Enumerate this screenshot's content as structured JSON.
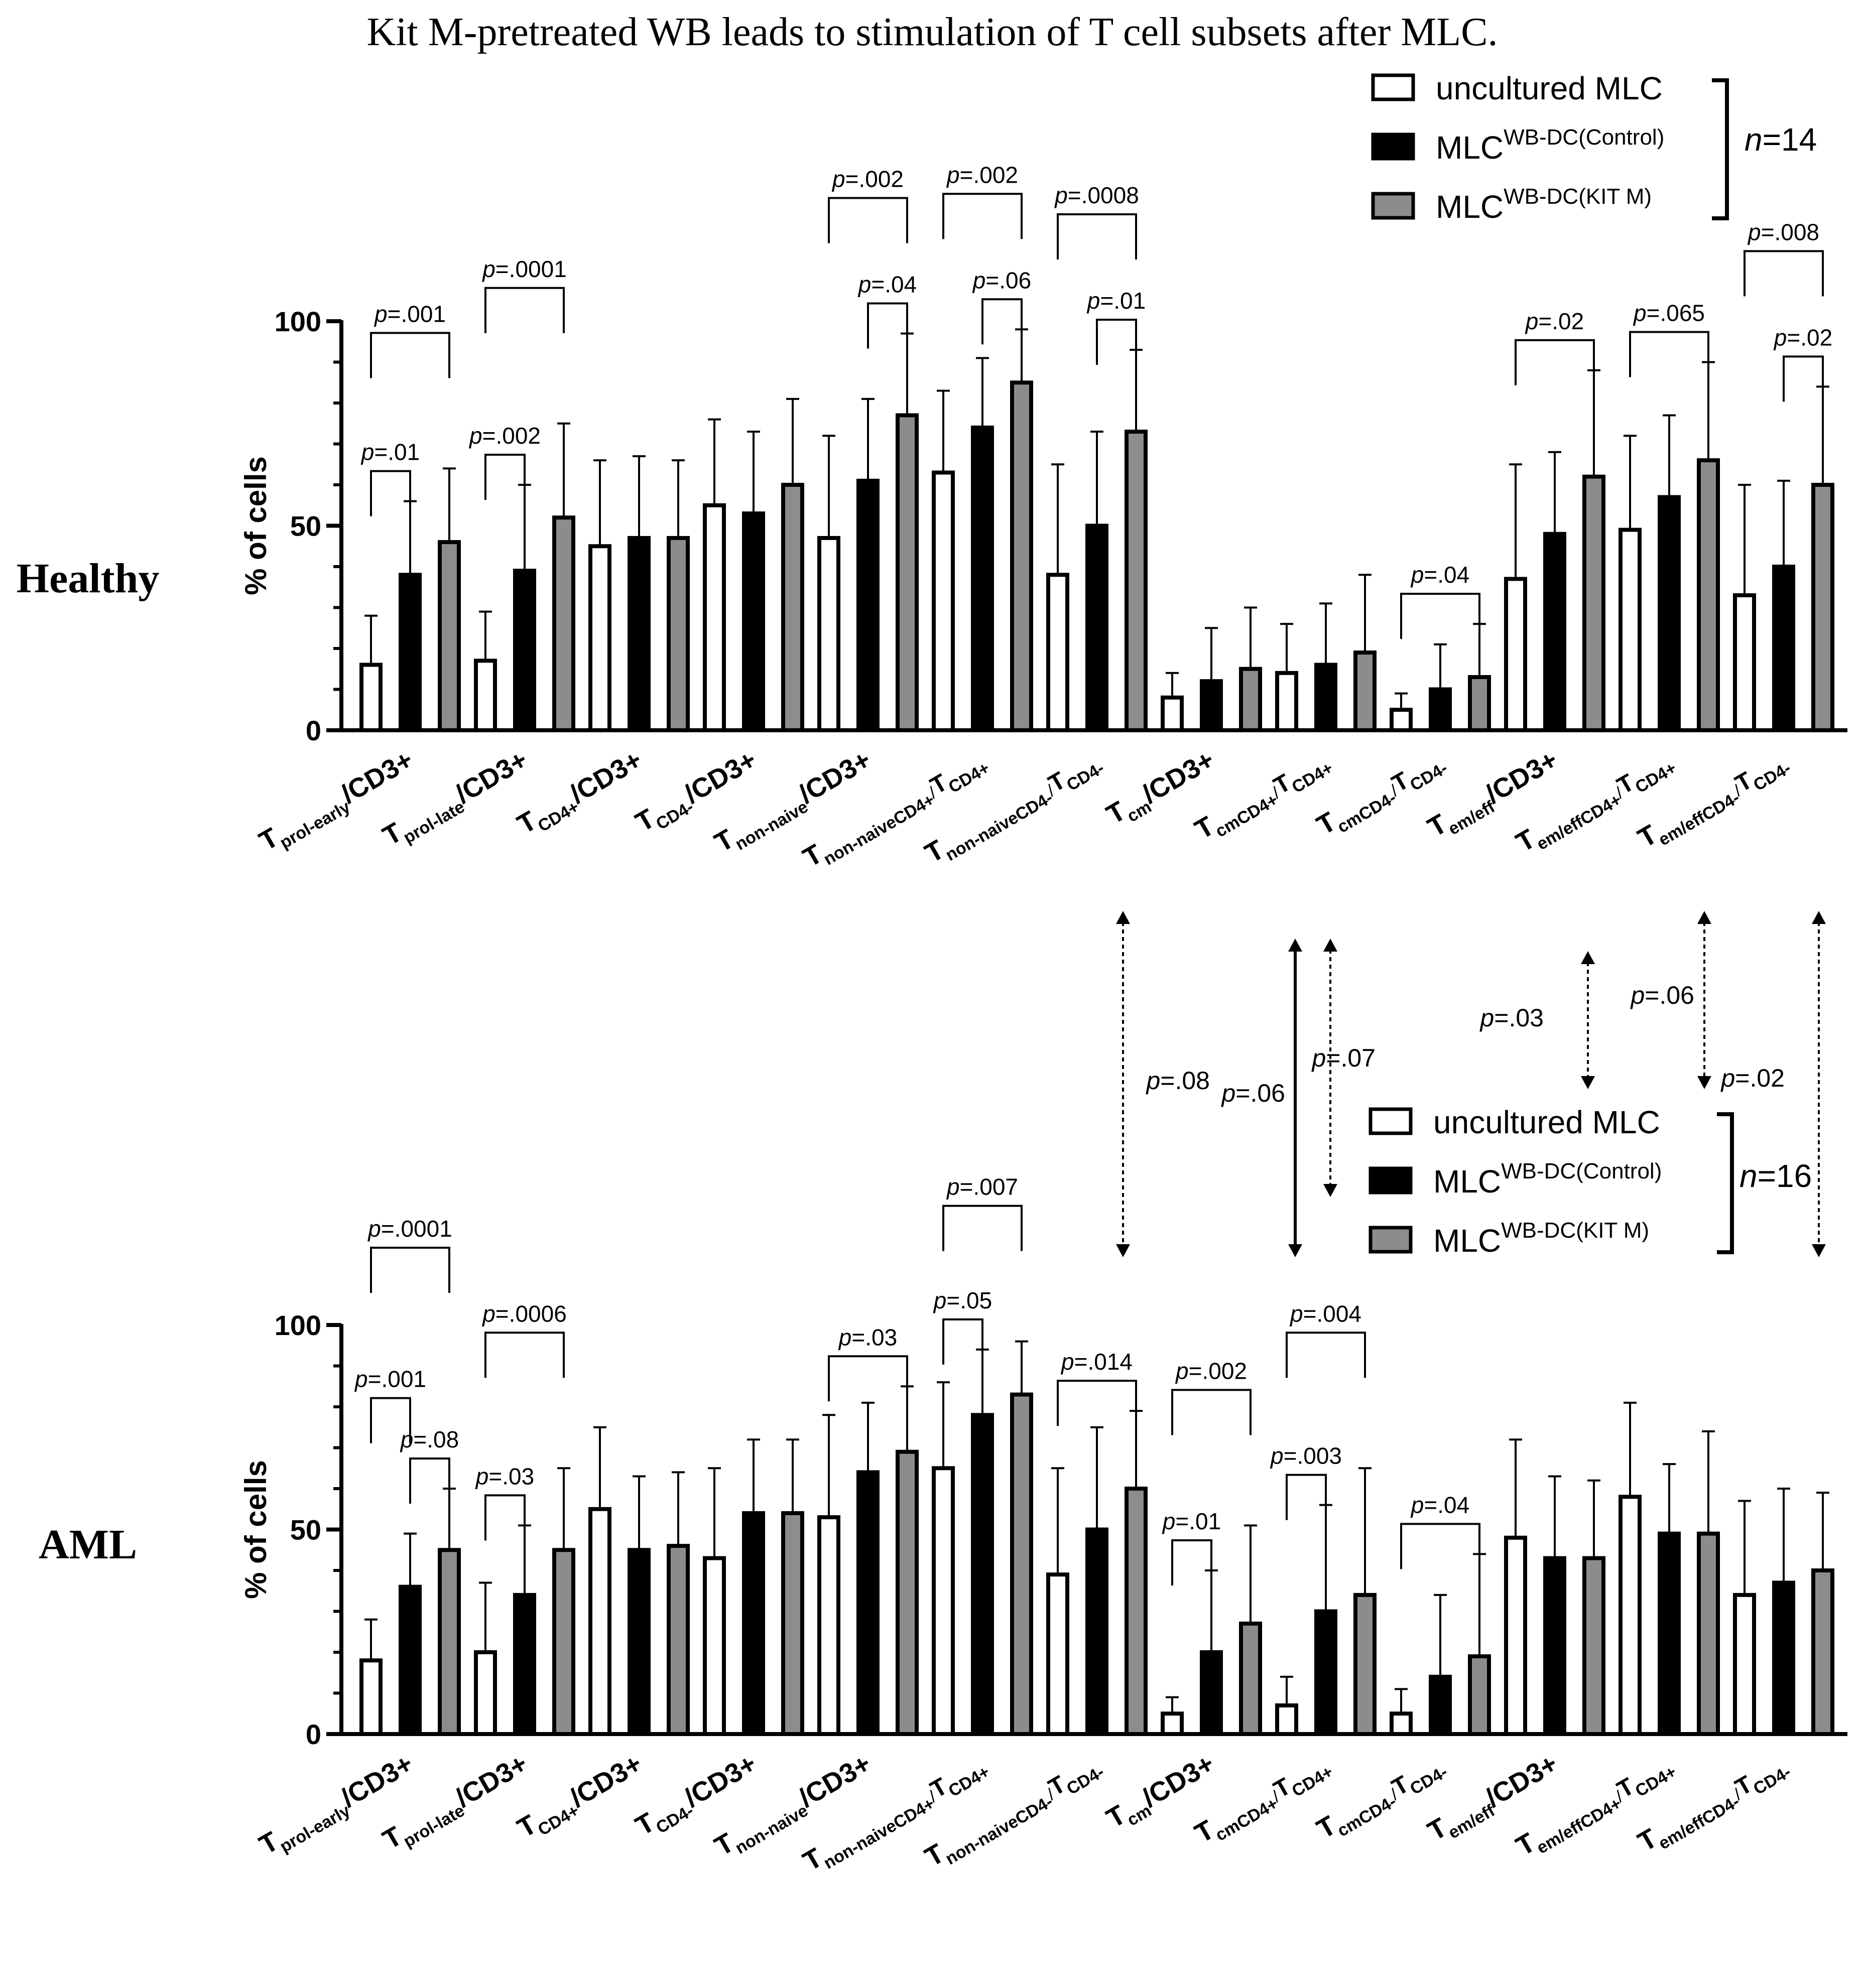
{
  "title": "Kit M-pretreated WB leads to stimulation of T cell subsets after MLC.",
  "colors": {
    "uncultured": "#ffffff",
    "control": "#000000",
    "kitm": "#8c8c8c",
    "axis": "#000000"
  },
  "chart_data": [
    {
      "type": "bar",
      "panel_label": "Healthy",
      "ylabel": "% of cells",
      "ylim": [
        0,
        100
      ],
      "yticks": [
        "0",
        "50",
        "100"
      ],
      "categories": [
        {
          "base": "T",
          "sub": "prol-early",
          "tail": "/CD3+"
        },
        {
          "base": "T",
          "sub": "prol-late",
          "tail": "/CD3+"
        },
        {
          "base": "T",
          "sub": "CD4+",
          "tail": "/CD3+"
        },
        {
          "base": "T",
          "sub": "CD4-",
          "tail": "/CD3+"
        },
        {
          "base": "T",
          "sub": "non-naive",
          "tail": "/CD3+"
        },
        {
          "base": "T",
          "sub": "non-naiveCD4+",
          "tail": "/T",
          "sub2": "CD4+"
        },
        {
          "base": "T",
          "sub": "non-naiveCD4-",
          "tail": "/T",
          "sub2": "CD4-"
        },
        {
          "base": "T",
          "sub": "cm",
          "tail": "/CD3+"
        },
        {
          "base": "T",
          "sub": "cmCD4+",
          "tail": "/T",
          "sub2": "CD4+"
        },
        {
          "base": "T",
          "sub": "cmCD4-",
          "tail": "/T",
          "sub2": "CD4-"
        },
        {
          "base": "T",
          "sub": "em/eff",
          "tail": "/CD3+"
        },
        {
          "base": "T",
          "sub": "em/effCD4+",
          "tail": "/T",
          "sub2": "CD4+"
        },
        {
          "base": "T",
          "sub": "em/effCD4-",
          "tail": "/T",
          "sub2": "CD4-"
        }
      ],
      "series": [
        {
          "name": "uncultured MLC",
          "color": "#ffffff",
          "values": [
            16,
            17,
            45,
            55,
            47,
            63,
            38,
            8,
            14,
            5,
            37,
            49,
            33
          ],
          "errors": [
            12,
            12,
            21,
            21,
            25,
            20,
            27,
            6,
            12,
            4,
            28,
            23,
            27
          ]
        },
        {
          "name": "MLC^WB-DC(Control)",
          "color": "#000000",
          "values": [
            38,
            39,
            47,
            53,
            61,
            74,
            50,
            12,
            16,
            10,
            48,
            57,
            40
          ],
          "errors": [
            18,
            21,
            20,
            20,
            20,
            17,
            23,
            13,
            15,
            11,
            20,
            20,
            21
          ]
        },
        {
          "name": "MLC^WB-DC(KIT M)",
          "color": "#8c8c8c",
          "values": [
            46,
            52,
            47,
            60,
            77,
            85,
            73,
            15,
            19,
            13,
            62,
            66,
            60
          ],
          "errors": [
            18,
            23,
            19,
            21,
            20,
            13,
            20,
            15,
            19,
            13,
            26,
            24,
            24
          ]
        }
      ],
      "legend": {
        "entries": [
          "uncultured MLC",
          "MLC",
          "MLC"
        ],
        "sup": [
          "",
          "WB-DC(Control)",
          "WB-DC(KIT M)"
        ],
        "n_label": "n",
        "n_value": "=14",
        "position": "top-right"
      },
      "significance": [
        {
          "group": 0,
          "from": 0,
          "to": 1,
          "level": 0,
          "p": "p",
          "text": "=.01"
        },
        {
          "group": 0,
          "from": 0,
          "to": 2,
          "level": 1,
          "p": "p",
          "text": "=.001"
        },
        {
          "group": 1,
          "from": 0,
          "to": 1,
          "level": 0,
          "p": "p",
          "text": "=.002"
        },
        {
          "group": 1,
          "from": 0,
          "to": 2,
          "level": 1,
          "p": "p",
          "text": "=.0001"
        },
        {
          "group": 4,
          "from": 1,
          "to": 2,
          "level": 0,
          "p": "p",
          "text": "=.04"
        },
        {
          "group": 4,
          "from": 0,
          "to": 2,
          "level": 1,
          "p": "p",
          "text": "=.002"
        },
        {
          "group": 5,
          "from": 1,
          "to": 2,
          "level": 0,
          "p": "p",
          "text": "=.06"
        },
        {
          "group": 5,
          "from": 0,
          "to": 2,
          "level": 1,
          "p": "p",
          "text": "=.002"
        },
        {
          "group": 6,
          "from": 1,
          "to": 2,
          "level": 0,
          "p": "p",
          "text": "=.01"
        },
        {
          "group": 6,
          "from": 0,
          "to": 2,
          "level": 1,
          "p": "p",
          "text": "=.0008"
        },
        {
          "group": 9,
          "from": 0,
          "to": 2,
          "level": 0,
          "p": "p",
          "text": "=.04"
        },
        {
          "group": 10,
          "from": 0,
          "to": 2,
          "level": 0,
          "p": "p",
          "text": "=.02"
        },
        {
          "group": 11,
          "from": 0,
          "to": 2,
          "level": 0,
          "p": "p",
          "text": "=.065"
        },
        {
          "group": 12,
          "from": 1,
          "to": 2,
          "level": 0,
          "p": "p",
          "text": "=.02"
        },
        {
          "group": 12,
          "from": 0,
          "to": 2,
          "level": 1,
          "p": "p",
          "text": "=.008"
        }
      ]
    },
    {
      "type": "bar",
      "panel_label": "AML",
      "ylabel": "% of cells",
      "ylim": [
        0,
        100
      ],
      "yticks": [
        "0",
        "50",
        "100"
      ],
      "categories": [
        {
          "base": "T",
          "sub": "prol-early",
          "tail": "/CD3+"
        },
        {
          "base": "T",
          "sub": "prol-late",
          "tail": "/CD3+"
        },
        {
          "base": "T",
          "sub": "CD4+",
          "tail": "/CD3+"
        },
        {
          "base": "T",
          "sub": "CD4-",
          "tail": "/CD3+"
        },
        {
          "base": "T",
          "sub": "non-naive",
          "tail": "/CD3+"
        },
        {
          "base": "T",
          "sub": "non-naiveCD4+",
          "tail": "/T",
          "sub2": "CD4+"
        },
        {
          "base": "T",
          "sub": "non-naiveCD4-",
          "tail": "/T",
          "sub2": "CD4-"
        },
        {
          "base": "T",
          "sub": "cm",
          "tail": "/CD3+"
        },
        {
          "base": "T",
          "sub": "cmCD4+",
          "tail": "/T",
          "sub2": "CD4+"
        },
        {
          "base": "T",
          "sub": "cmCD4-",
          "tail": "/T",
          "sub2": "CD4-"
        },
        {
          "base": "T",
          "sub": "em/eff",
          "tail": "/CD3+"
        },
        {
          "base": "T",
          "sub": "em/effCD4+",
          "tail": "/T",
          "sub2": "CD4+"
        },
        {
          "base": "T",
          "sub": "em/effCD4-",
          "tail": "/T",
          "sub2": "CD4-"
        }
      ],
      "series": [
        {
          "name": "uncultured MLC",
          "color": "#ffffff",
          "values": [
            18,
            20,
            55,
            43,
            53,
            65,
            39,
            5,
            7,
            5,
            48,
            58,
            34
          ],
          "errors": [
            10,
            17,
            20,
            22,
            25,
            21,
            26,
            4,
            7,
            6,
            24,
            23,
            23
          ]
        },
        {
          "name": "MLC^WB-DC(Control)",
          "color": "#000000",
          "values": [
            36,
            34,
            45,
            54,
            64,
            78,
            50,
            20,
            30,
            14,
            43,
            49,
            37
          ],
          "errors": [
            13,
            17,
            18,
            18,
            17,
            16,
            25,
            20,
            26,
            20,
            20,
            17,
            23
          ]
        },
        {
          "name": "MLC^WB-DC(KIT M)",
          "color": "#8c8c8c",
          "values": [
            45,
            45,
            46,
            54,
            69,
            83,
            60,
            27,
            34,
            19,
            43,
            49,
            40
          ],
          "errors": [
            15,
            20,
            18,
            18,
            16,
            13,
            19,
            24,
            31,
            25,
            19,
            25,
            19
          ]
        }
      ],
      "legend": {
        "entries": [
          "uncultured MLC",
          "MLC",
          "MLC"
        ],
        "sup": [
          "",
          "WB-DC(Control)",
          "WB-DC(KIT M)"
        ],
        "n_label": "n",
        "n_value": "=16",
        "position": "top-right"
      },
      "significance": [
        {
          "group": 0,
          "from": 0,
          "to": 1,
          "level": 1,
          "p": "p",
          "text": "=.001"
        },
        {
          "group": 0,
          "from": 1,
          "to": 2,
          "level": 0,
          "p": "p",
          "text": "=.08"
        },
        {
          "group": 0,
          "from": 0,
          "to": 2,
          "level": 2,
          "p": "p",
          "text": "=.0001"
        },
        {
          "group": 1,
          "from": 0,
          "to": 1,
          "level": 0,
          "p": "p",
          "text": "=.03"
        },
        {
          "group": 1,
          "from": 0,
          "to": 2,
          "level": 1,
          "p": "p",
          "text": "=.0006"
        },
        {
          "group": 4,
          "from": 0,
          "to": 2,
          "level": 0,
          "p": "p",
          "text": "=.03"
        },
        {
          "group": 5,
          "from": 0,
          "to": 1,
          "level": 0,
          "p": "p",
          "text": "=.05"
        },
        {
          "group": 5,
          "from": 0,
          "to": 2,
          "level": 1,
          "p": "p",
          "text": "=.007"
        },
        {
          "group": 6,
          "from": 0,
          "to": 2,
          "level": 0,
          "p": "p",
          "text": "=.014"
        },
        {
          "group": 7,
          "from": 0,
          "to": 1,
          "level": 0,
          "p": "p",
          "text": "=.01"
        },
        {
          "group": 7,
          "from": 0,
          "to": 2,
          "level": 1,
          "p": "p",
          "text": "=.002"
        },
        {
          "group": 8,
          "from": 0,
          "to": 1,
          "level": 0,
          "p": "p",
          "text": "=.003"
        },
        {
          "group": 8,
          "from": 0,
          "to": 2,
          "level": 1,
          "p": "p",
          "text": "=.004"
        },
        {
          "group": 9,
          "from": 0,
          "to": 2,
          "level": 0,
          "p": "p",
          "text": "=.04"
        }
      ]
    }
  ],
  "cross_comparisons": [
    {
      "category": 6,
      "style": "dashed",
      "p": "p",
      "text": "=.08"
    },
    {
      "category": 8,
      "style": "solid",
      "p": "p",
      "text": "=.06"
    },
    {
      "category": 8,
      "style": "dashed",
      "p": "p",
      "text": "=.07"
    },
    {
      "category": 10,
      "style": "dashed",
      "p": "p",
      "text": "=.03"
    },
    {
      "category": 11,
      "style": "dashed",
      "p": "p",
      "text": "=.06"
    },
    {
      "category": 12,
      "style": "dashed",
      "p": "p",
      "text": "=.02"
    }
  ]
}
